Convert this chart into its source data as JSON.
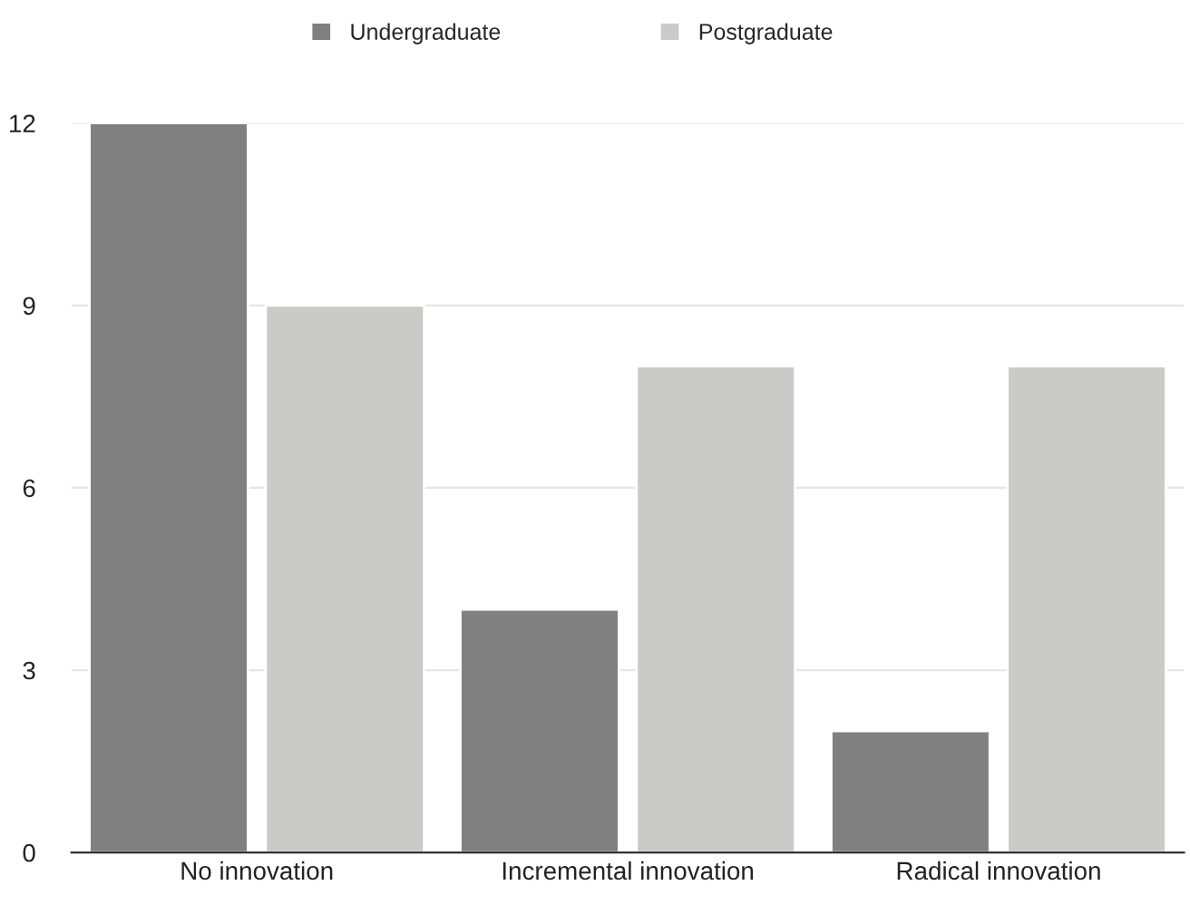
{
  "chart_data": {
    "type": "bar",
    "categories": [
      "No innovation",
      "Incremental innovation",
      "Radical innovation"
    ],
    "series": [
      {
        "name": "Undergraduate",
        "color": "#808080",
        "values": [
          12,
          4,
          2
        ]
      },
      {
        "name": "Postgraduate",
        "color": "#cacbc8",
        "values": [
          9,
          8,
          8
        ]
      }
    ],
    "ylim": [
      0,
      12
    ],
    "yticks": [
      0,
      3,
      6,
      9,
      12
    ],
    "grid": "y",
    "legend": "top"
  }
}
